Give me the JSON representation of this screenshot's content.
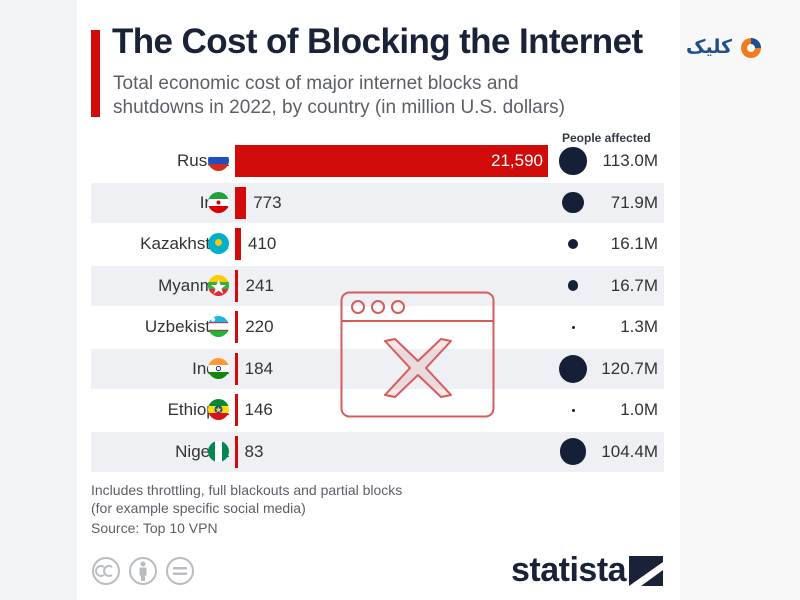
{
  "title": "The Cost of Blocking the Internet",
  "subtitle": "Total economic cost of major internet blocks and shutdowns in 2022, by country (in million U.S. dollars)",
  "people_header": "People affected",
  "note_line1": "Includes throttling, full blackouts and partial blocks",
  "note_line2": "(for example specific social media)",
  "source": "Source: Top 10 VPN",
  "logo": "statista",
  "brand": "کلیک",
  "colors": {
    "bar": "#d10a0a",
    "dot": "#152036",
    "title": "#1a2238",
    "overlay": "#d65c5c"
  },
  "chart_data": {
    "type": "bar",
    "orientation": "horizontal",
    "title": "The Cost of Blocking the Internet",
    "subtitle": "Total economic cost of major internet blocks and shutdowns in 2022, by country (in million U.S. dollars)",
    "categories": [
      "Russia",
      "Iran",
      "Kazakhstan",
      "Myanmar",
      "Uzbekistan",
      "India",
      "Ethiopia",
      "Nigeria"
    ],
    "values": [
      21590,
      773,
      410,
      241,
      220,
      184,
      146,
      83
    ],
    "value_labels": [
      "21,590",
      "773",
      "410",
      "241",
      "220",
      "184",
      "146",
      "83"
    ],
    "people_affected": [
      113.0,
      71.9,
      16.1,
      16.7,
      1.3,
      120.7,
      1.0,
      104.4
    ],
    "people_labels": [
      "113.0M",
      "71.9M",
      "16.1M",
      "16.7M",
      "1.3M",
      "120.7M",
      "1.0M",
      "104.4M"
    ],
    "people_unit": "million",
    "flags": [
      "russia",
      "iran",
      "kazakhstan",
      "myanmar",
      "uzbekistan",
      "india",
      "ethiopia",
      "nigeria"
    ],
    "xlim": [
      0,
      21590
    ]
  }
}
